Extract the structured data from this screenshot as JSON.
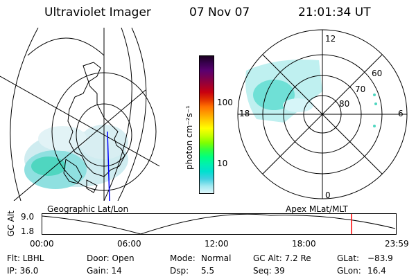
{
  "header": {
    "title": "Ultraviolet Imager",
    "date": "07 Nov 07",
    "time": "21:01:34 UT"
  },
  "colorbar": {
    "unit_label": "photon cm⁻²s⁻¹",
    "ticks": [
      "100",
      "10"
    ],
    "colors": [
      "#1a0020",
      "#3a0050",
      "#5a0070",
      "#7a0050",
      "#a00030",
      "#c80010",
      "#e03000",
      "#ff7000",
      "#ffa000",
      "#ffd000",
      "#ffff00",
      "#c8ff00",
      "#80ff00",
      "#30ff40",
      "#00ff80",
      "#00f0b0",
      "#00e0d0",
      "#40d0e0",
      "#a0e8f0",
      "#e0f8fc"
    ]
  },
  "polar": {
    "labels": {
      "top": "12",
      "right": "6",
      "left": "18",
      "bottom": "0"
    },
    "rings": [
      "60",
      "70",
      "80"
    ]
  },
  "altitude_plot": {
    "ylabel": "GC Alt",
    "ymax": "9.0",
    "ymin": "1.8",
    "left_label": "Geographic Lat/Lon",
    "right_label": "Apex MLat/MLT",
    "xticks": [
      "00:00",
      "06:00",
      "12:00",
      "18:00",
      "23:59"
    ],
    "marker_color": "#ff0000"
  },
  "info": {
    "flt": "Flt: LBHL",
    "ip": "IP: 36.0",
    "door": "Door: Open",
    "gain": "Gain: 14",
    "mode_label": "Mode:",
    "mode_value": "Normal",
    "dsp_label": "Dsp:",
    "dsp_value": "5.5",
    "gcalt": "GC Alt: 7.2 Re",
    "seq": "Seq: 39",
    "glat_label": "GLat:",
    "glat_value": "−83.9",
    "glon_label": "GLon:",
    "glon_value": "16.4"
  }
}
